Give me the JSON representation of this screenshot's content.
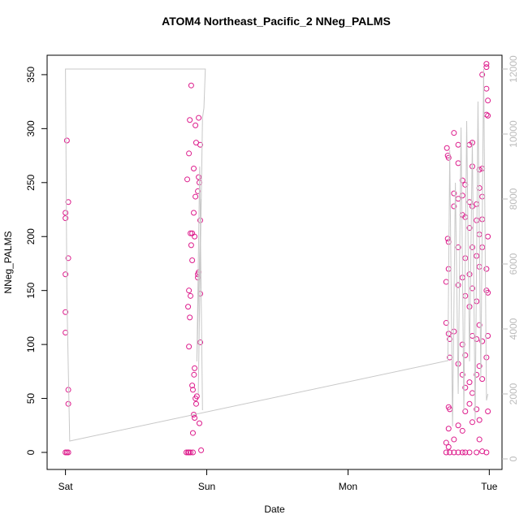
{
  "chart_data": {
    "type": "scatter",
    "title": "ATOM4 Northeast_Pacific_2 NNeg_PALMS",
    "xlabel": "Date",
    "ylabel": "NNeg_PALMS",
    "xlim": [
      -0.13,
      3.09
    ],
    "xticks": [
      {
        "value": 0,
        "label": "Sat"
      },
      {
        "value": 1,
        "label": "Sun"
      },
      {
        "value": 2,
        "label": "Mon"
      },
      {
        "value": 3,
        "label": "Tue"
      }
    ],
    "ylim": [
      -15.8,
      368
    ],
    "yticks": [
      0,
      50,
      100,
      150,
      200,
      250,
      300,
      350
    ],
    "y2lim": [
      -325,
      12425
    ],
    "y2ticks": [
      0,
      2000,
      4000,
      6000,
      8000,
      10000,
      12000
    ],
    "series": [
      {
        "color": "#dd1c8c",
        "x": [
          0.0,
          0.01,
          0.02,
          0.01,
          0.02,
          0.0,
          0.0,
          0.02,
          0.0,
          0.0,
          0.0,
          0.02,
          0.02,
          0.856,
          0.868,
          0.874,
          0.885,
          0.902,
          0.88,
          0.89,
          0.874,
          0.862,
          0.885,
          0.874,
          0.868,
          0.88,
          0.874,
          0.885,
          0.89,
          0.897,
          0.908,
          0.914,
          0.897,
          0.902,
          0.91,
          0.914,
          0.92,
          0.925,
          0.93,
          0.908,
          0.914,
          0.902,
          0.937,
          0.943,
          0.937,
          0.954,
          0.954,
          0.948,
          0.96,
          0.943,
          0.92,
          0.925,
          0.954,
          0.908,
          0.954,
          0.948,
          0.943,
          0.92,
          0.937,
          0.897,
          2.695,
          2.695,
          2.695,
          2.695,
          2.7,
          2.706,
          2.706,
          2.712,
          2.712,
          2.712,
          2.712,
          2.712,
          2.712,
          2.712,
          2.72,
          2.72,
          2.72,
          2.72,
          2.75,
          2.75,
          2.75,
          2.75,
          2.75,
          2.75,
          2.78,
          2.78,
          2.78,
          2.78,
          2.78,
          2.78,
          2.78,
          2.78,
          2.81,
          2.81,
          2.81,
          2.81,
          2.81,
          2.81,
          2.81,
          2.81,
          2.83,
          2.83,
          2.83,
          2.83,
          2.83,
          2.83,
          2.83,
          2.83,
          2.86,
          2.86,
          2.86,
          2.86,
          2.86,
          2.86,
          2.86,
          2.86,
          2.88,
          2.88,
          2.88,
          2.88,
          2.88,
          2.88,
          2.88,
          2.88,
          2.91,
          2.91,
          2.91,
          2.91,
          2.91,
          2.91,
          2.91,
          2.91,
          2.93,
          2.93,
          2.93,
          2.93,
          2.93,
          2.93,
          2.93,
          2.93,
          2.95,
          2.95,
          2.95,
          2.95,
          2.95,
          2.95,
          2.95,
          2.95,
          2.98,
          2.98,
          2.98,
          2.98,
          2.98,
          2.98,
          2.98,
          2.98,
          2.99,
          2.99,
          2.99,
          2.99,
          2.99,
          2.99
        ],
        "values": [
          0,
          0,
          0,
          289,
          232,
          222,
          217,
          180,
          165,
          130,
          111,
          58,
          45,
          0,
          0,
          0,
          0,
          0,
          308,
          340,
          277,
          253,
          203,
          150,
          135,
          125,
          98,
          145,
          192,
          178,
          222,
          200,
          62,
          58,
          72,
          78,
          50,
          45,
          52,
          35,
          32,
          18,
          165,
          167,
          162,
          147,
          102,
          27,
          2,
          310,
          303,
          287,
          285,
          263,
          215,
          250,
          255,
          237,
          242,
          203,
          0,
          158,
          120,
          9,
          282,
          275,
          198,
          273,
          195,
          170,
          110,
          42,
          22,
          5,
          105,
          88,
          40,
          0,
          296,
          240,
          228,
          112,
          12,
          0,
          285,
          268,
          235,
          190,
          155,
          82,
          25,
          0,
          252,
          238,
          220,
          162,
          100,
          72,
          20,
          0,
          248,
          218,
          180,
          145,
          90,
          60,
          38,
          0,
          285,
          232,
          208,
          165,
          135,
          65,
          45,
          0,
          287,
          265,
          228,
          190,
          152,
          108,
          55,
          28,
          230,
          215,
          182,
          140,
          105,
          72,
          40,
          0,
          262,
          245,
          202,
          172,
          118,
          80,
          30,
          12,
          350,
          263,
          237,
          216,
          190,
          103,
          68,
          1,
          360,
          357,
          337,
          313,
          170,
          150,
          88,
          0,
          326,
          312,
          200,
          148,
          108,
          38
        ]
      },
      {
        "color": "#c8c8c8",
        "axis": "y2",
        "x": [
          0.97,
          0.95,
          0.93,
          0.96,
          0.94,
          0.97,
          0.98,
          0.99,
          0.0,
          0.01,
          0.03,
          2.707,
          2.72,
          2.74,
          2.76,
          2.78,
          2.8,
          2.82,
          2.84,
          2.86,
          2.88,
          2.9,
          2.92,
          2.94,
          2.96,
          2.98,
          2.99
        ],
        "values": [
          1500,
          9000,
          3000,
          8000,
          2000,
          10500,
          10800,
          12000,
          12000,
          5000,
          550,
          3025,
          9500,
          1000,
          8500,
          2000,
          10200,
          1500,
          10400,
          3000,
          9800,
          1200,
          11000,
          2500,
          12000,
          1800,
          2000
        ]
      }
    ]
  }
}
